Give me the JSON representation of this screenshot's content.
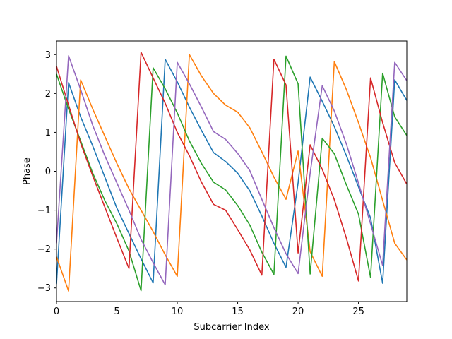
{
  "chart_data": {
    "type": "line",
    "title": "",
    "xlabel": "Subcarrier Index",
    "ylabel": "Phase",
    "xlim": [
      0,
      29
    ],
    "ylim": [
      -3.35,
      3.35
    ],
    "xticks": [
      0,
      5,
      10,
      15,
      20,
      25
    ],
    "yticks": [
      -3,
      -2,
      -1,
      0,
      1,
      2,
      3
    ],
    "grid": false,
    "legend": "none",
    "x": [
      0,
      1,
      2,
      3,
      4,
      5,
      6,
      7,
      8,
      9,
      10,
      11,
      12,
      13,
      14,
      15,
      16,
      17,
      18,
      19,
      20,
      21,
      22,
      23,
      24,
      25,
      26,
      27,
      28,
      29
    ],
    "series": [
      {
        "color": "#1f77b4",
        "values": [
          -2.9,
          2.28,
          1.4,
          0.65,
          -0.15,
          -0.95,
          -1.6,
          -2.25,
          -2.87,
          2.88,
          2.3,
          1.65,
          1.05,
          0.48,
          0.25,
          -0.05,
          -0.5,
          -1.15,
          -1.85,
          -2.47,
          -0.3,
          2.42,
          1.8,
          1.15,
          0.4,
          -0.4,
          -1.2,
          -2.88,
          2.35,
          1.82
        ]
      },
      {
        "color": "#ff7f0e",
        "values": [
          -2.2,
          -3.08,
          2.35,
          1.6,
          0.9,
          0.2,
          -0.45,
          -1.0,
          -1.55,
          -2.15,
          -2.7,
          3.0,
          2.45,
          2.0,
          1.7,
          1.52,
          1.12,
          0.5,
          -0.15,
          -0.72,
          0.52,
          -2.07,
          -2.7,
          2.82,
          2.1,
          1.25,
          0.35,
          -0.75,
          -1.85,
          -2.28
        ]
      },
      {
        "color": "#2ca02c",
        "values": [
          2.5,
          1.6,
          0.78,
          -0.05,
          -0.75,
          -1.35,
          -2.05,
          -3.07,
          2.66,
          2.12,
          1.5,
          0.78,
          0.2,
          -0.28,
          -0.48,
          -0.88,
          -1.38,
          -2.08,
          -2.65,
          2.96,
          2.25,
          -2.64,
          0.85,
          0.45,
          -0.35,
          -1.1,
          -2.73,
          2.52,
          1.4,
          0.92
        ]
      },
      {
        "color": "#d62728",
        "values": [
          2.7,
          1.7,
          0.72,
          -0.12,
          -0.92,
          -1.72,
          -2.5,
          3.06,
          2.4,
          1.75,
          1.0,
          0.4,
          -0.28,
          -0.85,
          -1.0,
          -1.5,
          -2.02,
          -2.67,
          2.88,
          2.22,
          -2.1,
          0.68,
          0.05,
          -0.73,
          -1.72,
          -2.82,
          2.4,
          1.25,
          0.22,
          -0.33
        ]
      },
      {
        "color": "#9467bd",
        "values": [
          -1.85,
          2.97,
          2.1,
          1.18,
          0.4,
          -0.3,
          -1.0,
          -1.75,
          -2.35,
          -2.92,
          2.8,
          2.25,
          1.65,
          1.02,
          0.82,
          0.46,
          0.02,
          -0.72,
          -1.45,
          -2.12,
          -2.63,
          -0.05,
          2.2,
          1.55,
          0.7,
          -0.3,
          -1.35,
          -2.42,
          2.8,
          2.33
        ]
      }
    ]
  }
}
